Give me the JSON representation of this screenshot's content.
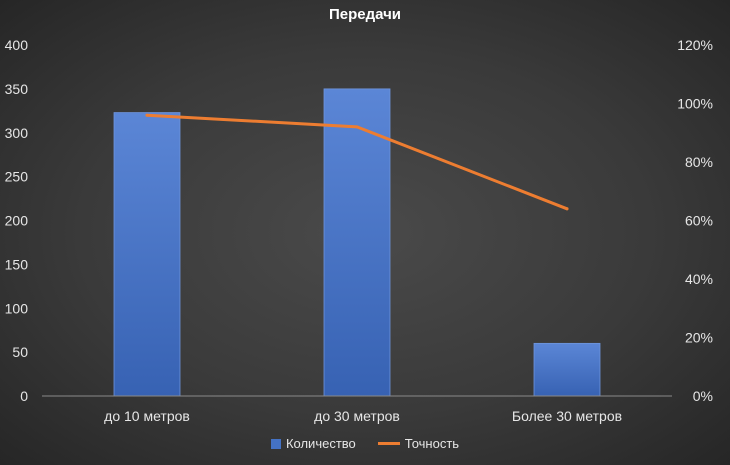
{
  "chart_data": {
    "type": "bar",
    "title": "Передачи",
    "categories": [
      "до 10 метров",
      "до 30 метров",
      "Более 30 метров"
    ],
    "series": [
      {
        "name": "Количество",
        "type": "bar",
        "axis": "left",
        "color": "#4472c4",
        "values": [
          323,
          350,
          60
        ]
      },
      {
        "name": "Точность",
        "type": "line",
        "axis": "right",
        "color": "#ed7d31",
        "values": [
          0.96,
          0.92,
          0.64
        ]
      }
    ],
    "y_left": {
      "min": 0,
      "max": 400,
      "ticks": [
        "0",
        "50",
        "100",
        "150",
        "200",
        "250",
        "300",
        "350",
        "400"
      ]
    },
    "y_right": {
      "min": 0,
      "max": 1.2,
      "ticks": [
        "0%",
        "20%",
        "40%",
        "60%",
        "80%",
        "100%",
        "120%"
      ]
    },
    "grid": false,
    "legend": "bottom"
  }
}
